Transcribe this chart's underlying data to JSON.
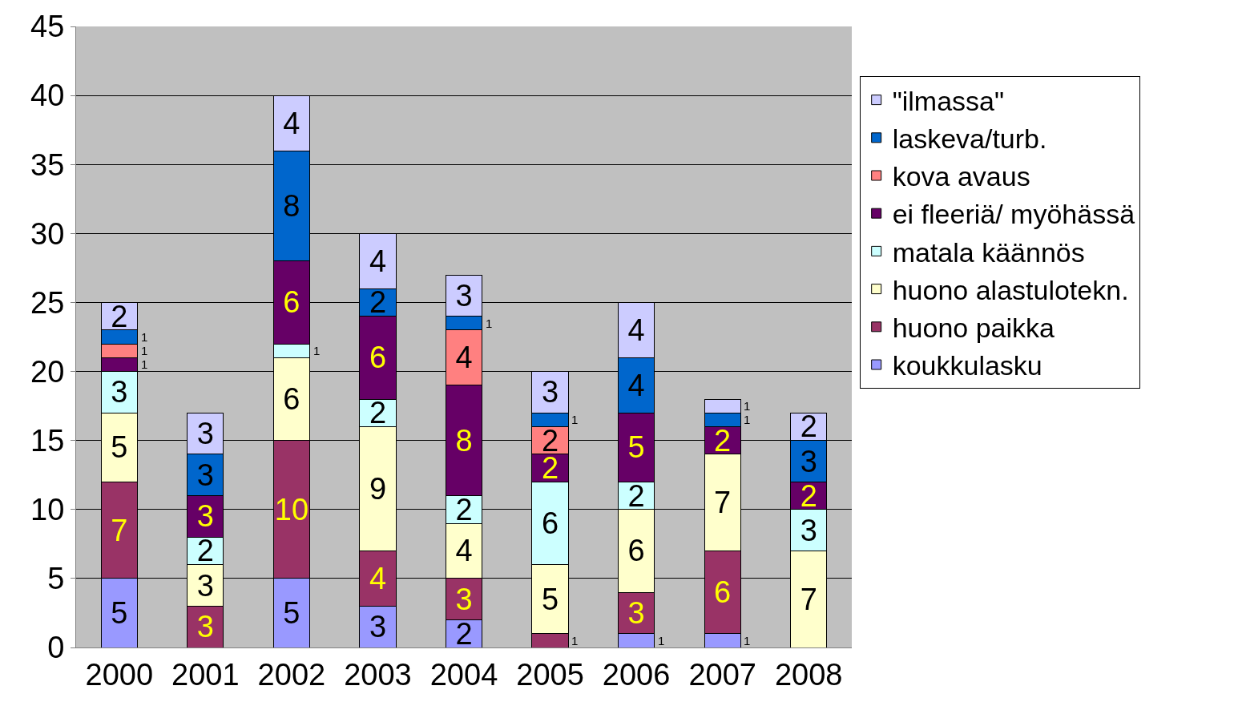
{
  "chart_data": {
    "type": "bar",
    "stacked": true,
    "categories": [
      "2000",
      "2001",
      "2002",
      "2003",
      "2004",
      "2005",
      "2006",
      "2007",
      "2008"
    ],
    "series": [
      {
        "name": "koukkulasku",
        "color": "#9999ff",
        "values": [
          5,
          0,
          5,
          3,
          2,
          0,
          1,
          1,
          0
        ],
        "value_labels": [
          "5",
          null,
          "5",
          "3",
          "2",
          null,
          "1",
          "1",
          null
        ]
      },
      {
        "name": "huono paikka",
        "color": "#993366",
        "values": [
          7,
          3,
          10,
          4,
          3,
          1,
          3,
          6,
          0
        ],
        "value_labels": [
          "7",
          "3",
          "10",
          "4",
          "3",
          "1",
          "3",
          "6",
          null
        ]
      },
      {
        "name": "huono alastulotekn.",
        "color": "#ffffcc",
        "values": [
          5,
          3,
          6,
          9,
          4,
          5,
          6,
          7,
          7
        ],
        "value_labels": [
          "5",
          "3",
          "6",
          "9",
          "4",
          "5",
          "6",
          "7",
          "7"
        ]
      },
      {
        "name": "matala käännös",
        "color": "#ccffff",
        "values": [
          3,
          2,
          1,
          2,
          2,
          6,
          2,
          0,
          3
        ],
        "value_labels": [
          "3",
          "2",
          "1",
          "2",
          "2",
          "6",
          "2",
          null,
          "3"
        ]
      },
      {
        "name": "ei fleeriä/ myöhässä",
        "color": "#660066",
        "values": [
          1,
          3,
          6,
          6,
          8,
          2,
          5,
          2,
          2
        ],
        "value_labels": [
          "1",
          "3",
          "6",
          "6",
          "8",
          "2",
          "5",
          "2",
          "2"
        ]
      },
      {
        "name": "kova avaus",
        "color": "#ff8080",
        "values": [
          1,
          0,
          0,
          0,
          4,
          2,
          0,
          0,
          0
        ],
        "value_labels": [
          "1",
          null,
          null,
          null,
          "4",
          "2",
          null,
          null,
          null
        ]
      },
      {
        "name": "laskeva/turb.",
        "color": "#0066cc",
        "values": [
          1,
          3,
          8,
          2,
          1,
          1,
          4,
          1,
          3
        ],
        "value_labels": [
          "1",
          "3",
          "8",
          "2",
          "1",
          "1",
          "4",
          "1",
          "3"
        ]
      },
      {
        "name": "\"ilmassa\"",
        "color": "#ccccff",
        "values": [
          2,
          3,
          4,
          4,
          3,
          3,
          4,
          1,
          2
        ],
        "value_labels": [
          "2",
          "3",
          "4",
          "4",
          "3",
          "3",
          "4",
          "1",
          "2"
        ]
      }
    ],
    "ylim": [
      0,
      45
    ],
    "yticks": [
      0,
      5,
      10,
      15,
      20,
      25,
      30,
      35,
      40,
      45
    ],
    "grid": "y",
    "legend": "right"
  }
}
